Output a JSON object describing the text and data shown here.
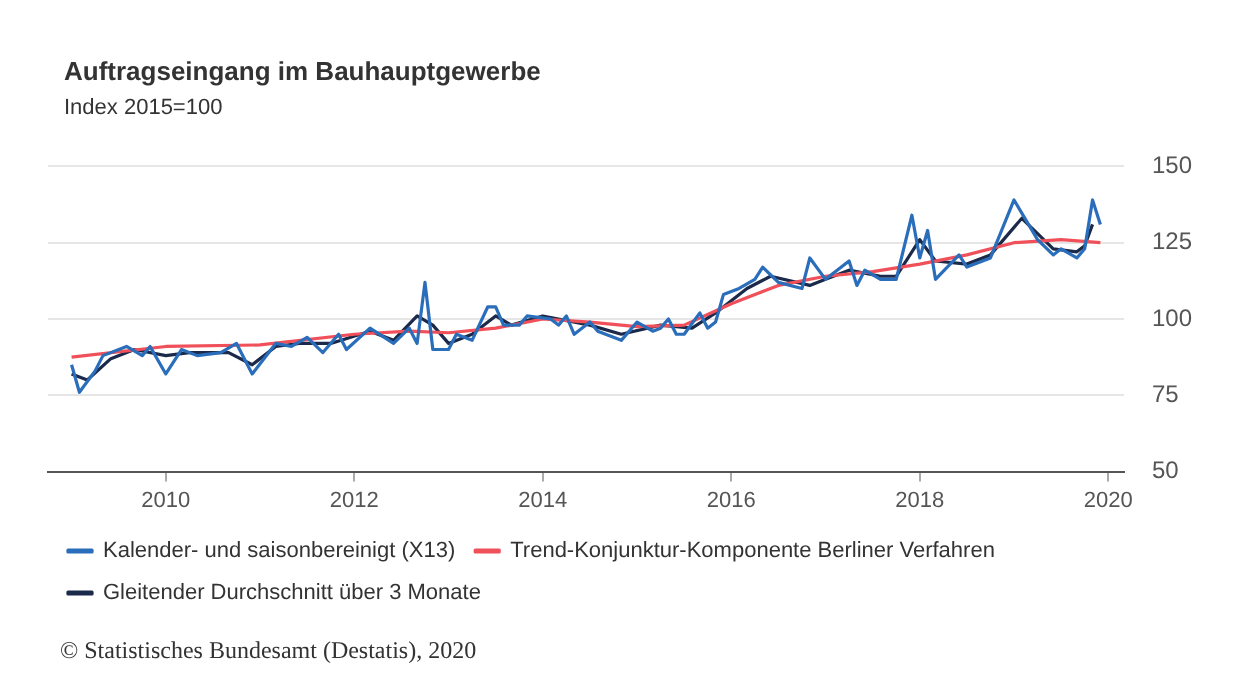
{
  "chart_data": {
    "type": "line",
    "title": "Auftragseingang im Bauhauptgewerbe",
    "subtitle": "Index 2015=100",
    "xlim": [
      "2008-10",
      "2020-03"
    ],
    "xticks": [
      "2010",
      "2012",
      "2014",
      "2016",
      "2018",
      "2020"
    ],
    "ylim": [
      50,
      150
    ],
    "yticks": [
      50,
      75,
      100,
      125,
      150
    ],
    "grid": "y",
    "legend": "bottom",
    "marker": "none",
    "line_style": "solid",
    "annotations": [
      "© Statistisches Bundesamt (Destatis), 2020"
    ],
    "series": [
      {
        "name": "Kalender- und saisonbereinigt (X13)",
        "color": "#2a6ebb",
        "x": [
          "2009-01",
          "2009-02",
          "2009-04",
          "2009-05",
          "2009-08",
          "2009-10",
          "2009-11",
          "2010-01",
          "2010-03",
          "2010-05",
          "2010-08",
          "2010-10",
          "2010-12",
          "2011-03",
          "2011-05",
          "2011-07",
          "2011-09",
          "2011-11",
          "2011-12",
          "2012-03",
          "2012-06",
          "2012-08",
          "2012-09",
          "2012-10",
          "2012-11",
          "2013-01",
          "2013-02",
          "2013-04",
          "2013-06",
          "2013-07",
          "2013-08",
          "2013-10",
          "2013-11",
          "2014-02",
          "2014-03",
          "2014-04",
          "2014-05",
          "2014-07",
          "2014-08",
          "2014-10",
          "2014-11",
          "2015-01",
          "2015-03",
          "2015-04",
          "2015-05",
          "2015-06",
          "2015-07",
          "2015-09",
          "2015-10",
          "2015-11",
          "2015-12",
          "2016-02",
          "2016-04",
          "2016-05",
          "2016-07",
          "2016-10",
          "2016-11",
          "2017-01",
          "2017-04",
          "2017-05",
          "2017-06",
          "2017-08",
          "2017-10",
          "2017-12",
          "2018-01",
          "2018-02",
          "2018-03",
          "2018-06",
          "2018-07",
          "2018-10",
          "2019-01",
          "2019-04",
          "2019-06",
          "2019-07",
          "2019-09",
          "2019-10",
          "2019-11",
          "2019-12"
        ],
        "values": [
          85,
          76,
          83,
          88,
          91,
          88,
          91,
          82,
          90,
          88,
          89,
          92,
          82,
          92,
          91,
          94,
          89,
          95,
          90,
          97,
          92,
          97,
          92,
          112,
          90,
          90,
          95,
          93,
          104,
          104,
          98,
          98,
          101,
          100,
          98,
          101,
          95,
          99,
          96,
          94,
          93,
          99,
          96,
          97,
          100,
          95,
          95,
          102,
          97,
          99,
          108,
          110,
          113,
          117,
          112,
          110,
          120,
          113,
          119,
          111,
          116,
          113,
          113,
          134,
          120,
          129,
          113,
          121,
          117,
          120,
          139,
          126,
          121,
          123,
          120,
          123,
          139,
          131
        ]
      },
      {
        "name": "Trend-Konjunktur-Komponente Berliner Verfahren",
        "color": "#f0505a",
        "x": [
          "2009-01",
          "2010-01",
          "2011-01",
          "2012-01",
          "2012-08",
          "2013-01",
          "2013-07",
          "2014-01",
          "2014-07",
          "2015-01",
          "2015-07",
          "2016-01",
          "2016-07",
          "2017-01",
          "2017-07",
          "2018-01",
          "2018-07",
          "2019-01",
          "2019-07",
          "2019-12"
        ],
        "values": [
          87.5,
          91,
          91.5,
          95,
          96,
          95.5,
          97,
          100,
          99,
          97.5,
          98,
          105,
          111,
          114,
          115.5,
          118,
          121,
          125,
          126,
          125
        ]
      },
      {
        "name": "Gleitender Durchschnitt über 3 Monate",
        "color": "#1b2a4a",
        "x": [
          "2009-01",
          "2009-03",
          "2009-06",
          "2009-09",
          "2010-01",
          "2010-04",
          "2010-09",
          "2010-12",
          "2011-03",
          "2011-06",
          "2011-10",
          "2012-03",
          "2012-06",
          "2012-09",
          "2012-11",
          "2013-01",
          "2013-04",
          "2013-07",
          "2013-09",
          "2014-01",
          "2014-07",
          "2014-11",
          "2015-04",
          "2015-08",
          "2015-11",
          "2016-03",
          "2016-06",
          "2016-11",
          "2017-01",
          "2017-04",
          "2017-08",
          "2017-10",
          "2018-01",
          "2018-03",
          "2018-07",
          "2018-10",
          "2019-02",
          "2019-06",
          "2019-09",
          "2019-10",
          "2019-11"
        ],
        "values": [
          82,
          80,
          87,
          90,
          88,
          89,
          89,
          85,
          91,
          92,
          92,
          96,
          93,
          101,
          98,
          92,
          95,
          101,
          98,
          101,
          98,
          95,
          98,
          97,
          102,
          110,
          114,
          111,
          113,
          116,
          114,
          114,
          126,
          119,
          118,
          121,
          133,
          123,
          122,
          124,
          131
        ]
      }
    ]
  }
}
